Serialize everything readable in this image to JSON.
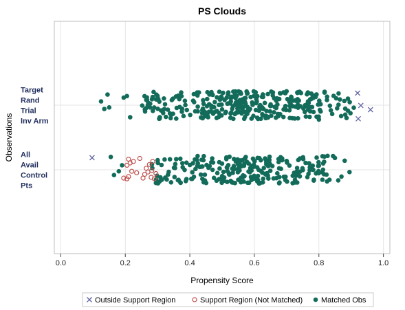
{
  "chart_data": {
    "type": "scatter",
    "title": "PS Clouds",
    "xlabel": "Propensity Score",
    "ylabel": "Observations",
    "xlim": [
      -0.02,
      1.02
    ],
    "xticks": [
      "0.0",
      "0.2",
      "0.4",
      "0.6",
      "0.8",
      "1.0"
    ],
    "categories": [
      {
        "id": "target",
        "lines": [
          "Target",
          "Rand",
          "Trial",
          "Inv Arm"
        ]
      },
      {
        "id": "control",
        "lines": [
          "All",
          "Avail",
          "Control",
          "Pts"
        ]
      }
    ],
    "grid": true,
    "legend_position": "bottom",
    "legend": [
      {
        "key": "outside",
        "label": "Outside Support Region"
      },
      {
        "key": "unmatched",
        "label": "Support Region (Not Matched)"
      },
      {
        "key": "matched",
        "label": "Matched Obs"
      }
    ],
    "colors": {
      "matched": "#136b5a",
      "unmatched": "#c0504d",
      "outside": "#5a5f9e",
      "grid": "#e6e6e6",
      "frame": "#bdbdbd"
    },
    "outside_points": {
      "target": [
        {
          "x": 0.922,
          "y": 0.9
        },
        {
          "x": 0.93,
          "y": 0.02
        },
        {
          "x": 0.92,
          "y": -0.8
        },
        {
          "x": 0.96,
          "y": 0.3
        }
      ],
      "control": [
        {
          "x": 0.097,
          "y": -0.8
        }
      ]
    },
    "unmatched_points": {
      "control": [
        {
          "x": 0.195,
          "y": 0.55
        },
        {
          "x": 0.21,
          "y": 0.45
        },
        {
          "x": 0.22,
          "y": 0.1
        },
        {
          "x": 0.205,
          "y": -0.3
        },
        {
          "x": 0.215,
          "y": -0.45
        },
        {
          "x": 0.225,
          "y": -0.55
        },
        {
          "x": 0.21,
          "y": -0.7
        },
        {
          "x": 0.235,
          "y": 0.2
        },
        {
          "x": 0.245,
          "y": -0.75
        },
        {
          "x": 0.255,
          "y": 0.55
        },
        {
          "x": 0.26,
          "y": 0.3
        },
        {
          "x": 0.265,
          "y": -0.1
        },
        {
          "x": 0.27,
          "y": 0.15
        },
        {
          "x": 0.275,
          "y": -0.35
        },
        {
          "x": 0.28,
          "y": 0.5
        },
        {
          "x": 0.282,
          "y": 0.05
        },
        {
          "x": 0.29,
          "y": 0.6
        },
        {
          "x": 0.285,
          "y": -0.55
        },
        {
          "x": 0.295,
          "y": 0.25
        },
        {
          "x": 0.205,
          "y": 0.6
        }
      ]
    },
    "matched_points": {
      "target": [
        {
          "x": 0.125,
          "y": -0.25
        },
        {
          "x": 0.135,
          "y": 0.25
        },
        {
          "x": 0.145,
          "y": -0.7
        },
        {
          "x": 0.15,
          "y": 0.15
        },
        {
          "x": 0.215,
          "y": 0.8
        },
        {
          "x": 0.195,
          "y": -0.5
        },
        {
          "x": 0.205,
          "y": -0.6
        },
        {
          "x": 0.265,
          "y": -0.35
        },
        {
          "x": 0.305,
          "y": 0.9
        },
        {
          "x": 0.62,
          "y": 0.9
        },
        {
          "x": 0.71,
          "y": 0.85
        },
        {
          "x": 0.8,
          "y": 0.95
        }
      ],
      "control": [
        {
          "x": 0.155,
          "y": -0.85
        },
        {
          "x": 0.165,
          "y": 0.35
        },
        {
          "x": 0.18,
          "y": 0.1
        },
        {
          "x": 0.19,
          "y": -0.3
        },
        {
          "x": 0.86,
          "y": 0.7
        },
        {
          "x": 0.87,
          "y": 0.45
        },
        {
          "x": 0.88,
          "y": -0.6
        },
        {
          "x": 0.895,
          "y": 0.15
        }
      ]
    },
    "matched_ranges": {
      "target": {
        "min": 0.25,
        "max": 0.91,
        "count": 330
      },
      "control": {
        "min": 0.28,
        "max": 0.85,
        "count": 250
      }
    }
  }
}
